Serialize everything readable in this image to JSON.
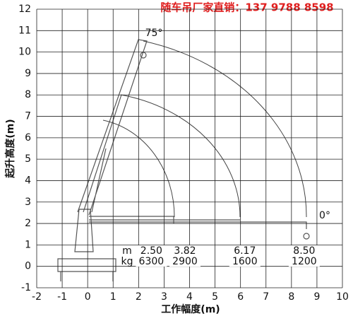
{
  "chart_data": {
    "type": "crane-range",
    "title": "随车吊厂家直销：137 9788 8598",
    "x_label": "工作幅度(m)",
    "y_label": "起升高度(m)",
    "xlim": [
      -2,
      10
    ],
    "ylim": [
      -1,
      12
    ],
    "xticks": [
      -2,
      -1,
      0,
      1,
      2,
      3,
      4,
      5,
      6,
      7,
      8,
      9,
      10
    ],
    "yticks": [
      -1,
      0,
      1,
      2,
      3,
      4,
      5,
      6,
      7,
      8,
      9,
      10,
      11,
      12
    ],
    "grid": true,
    "angle_labels": [
      "75°",
      "0°"
    ],
    "table": {
      "row_labels": [
        "m",
        "kg"
      ],
      "radius": [
        2.5,
        3.82,
        6.17,
        8.5
      ],
      "radius_labels": [
        "2.50",
        "3.82",
        "6.17",
        "8.50"
      ],
      "load": [
        6300,
        2900,
        1600,
        1200
      ]
    }
  }
}
